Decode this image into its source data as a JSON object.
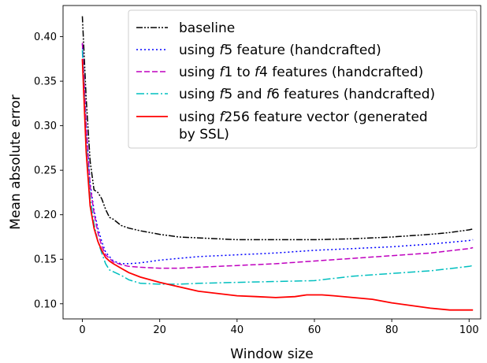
{
  "chart_data": {
    "type": "line",
    "title": "",
    "xlabel": "Window size",
    "ylabel": "Mean absolute error",
    "xlim": [
      -5,
      103
    ],
    "ylim": [
      0.083,
      0.435
    ],
    "x_ticks": [
      0,
      20,
      40,
      60,
      80,
      100
    ],
    "y_ticks": [
      0.1,
      0.15,
      0.2,
      0.25,
      0.3,
      0.35,
      0.4
    ],
    "x_tick_labels": [
      "0",
      "20",
      "40",
      "60",
      "80",
      "100"
    ],
    "y_tick_labels": [
      "0.10",
      "0.15",
      "0.20",
      "0.25",
      "0.30",
      "0.35",
      "0.40"
    ],
    "grid": false,
    "legend_position": "top-right",
    "series": [
      {
        "name": "baseline",
        "color": "#000000",
        "dash": "8,2,2,2,2,2",
        "x": [
          0,
          1,
          2,
          3,
          4,
          5,
          6,
          7,
          8,
          10,
          12,
          15,
          20,
          25,
          30,
          40,
          50,
          60,
          70,
          80,
          90,
          95,
          100,
          101
        ],
        "y": [
          0.423,
          0.33,
          0.26,
          0.228,
          0.225,
          0.218,
          0.206,
          0.197,
          0.195,
          0.188,
          0.185,
          0.182,
          0.178,
          0.175,
          0.174,
          0.172,
          0.172,
          0.172,
          0.173,
          0.175,
          0.178,
          0.18,
          0.183,
          0.184
        ]
      },
      {
        "name": "using f5 feature (handcrafted)",
        "label_parts": [
          "using ",
          "f",
          "5 feature (handcrafted)"
        ],
        "color": "#0000ff",
        "dash": "2,3",
        "x": [
          0,
          1,
          2,
          3,
          4,
          5,
          6,
          8,
          10,
          12,
          15,
          20,
          25,
          30,
          40,
          50,
          60,
          70,
          80,
          90,
          100,
          101
        ],
        "y": [
          0.392,
          0.3,
          0.235,
          0.205,
          0.185,
          0.17,
          0.158,
          0.148,
          0.145,
          0.145,
          0.146,
          0.149,
          0.151,
          0.153,
          0.155,
          0.157,
          0.16,
          0.162,
          0.164,
          0.167,
          0.171,
          0.172
        ]
      },
      {
        "name": "using f1 to f4 features (handcrafted)",
        "label_parts": [
          "using ",
          "f",
          "1 to ",
          "f",
          "4 features (handcrafted)"
        ],
        "color": "#bf00bf",
        "dash": "7,3",
        "x": [
          0,
          1,
          2,
          3,
          4,
          5,
          6,
          8,
          10,
          12,
          15,
          20,
          25,
          30,
          40,
          50,
          60,
          70,
          80,
          90,
          100,
          101
        ],
        "y": [
          0.393,
          0.3,
          0.232,
          0.202,
          0.18,
          0.165,
          0.155,
          0.147,
          0.144,
          0.142,
          0.141,
          0.14,
          0.14,
          0.141,
          0.143,
          0.145,
          0.148,
          0.151,
          0.154,
          0.157,
          0.162,
          0.163
        ]
      },
      {
        "name": "using f5 and f6 features (handcrafted)",
        "label_parts": [
          "using ",
          "f",
          "5 and ",
          "f",
          "6 features (handcrafted)"
        ],
        "color": "#00bfbf",
        "dash": "10,3,2,3",
        "x": [
          0,
          1,
          2,
          3,
          4,
          5,
          6,
          7,
          8,
          10,
          12,
          15,
          20,
          25,
          30,
          40,
          50,
          60,
          70,
          80,
          90,
          100,
          101
        ],
        "y": [
          0.385,
          0.28,
          0.22,
          0.19,
          0.17,
          0.157,
          0.145,
          0.138,
          0.136,
          0.132,
          0.127,
          0.123,
          0.122,
          0.122,
          0.123,
          0.124,
          0.125,
          0.126,
          0.131,
          0.134,
          0.137,
          0.142,
          0.143
        ]
      },
      {
        "name": "using f256 feature vector (generated by SSL)",
        "label_parts": [
          "using ",
          "f",
          "256 feature vector (generated"
        ],
        "label_line2": " by SSL)",
        "color": "#ff0000",
        "dash": "",
        "x": [
          0,
          1,
          2,
          3,
          4,
          5,
          6,
          7,
          8,
          10,
          12,
          15,
          20,
          25,
          30,
          40,
          45,
          50,
          55,
          58,
          62,
          65,
          70,
          75,
          80,
          85,
          90,
          95,
          100,
          101
        ],
        "y": [
          0.375,
          0.27,
          0.21,
          0.185,
          0.17,
          0.16,
          0.152,
          0.148,
          0.145,
          0.14,
          0.135,
          0.13,
          0.124,
          0.119,
          0.114,
          0.109,
          0.108,
          0.107,
          0.108,
          0.11,
          0.11,
          0.109,
          0.107,
          0.105,
          0.101,
          0.098,
          0.095,
          0.093,
          0.093,
          0.093
        ]
      }
    ]
  }
}
